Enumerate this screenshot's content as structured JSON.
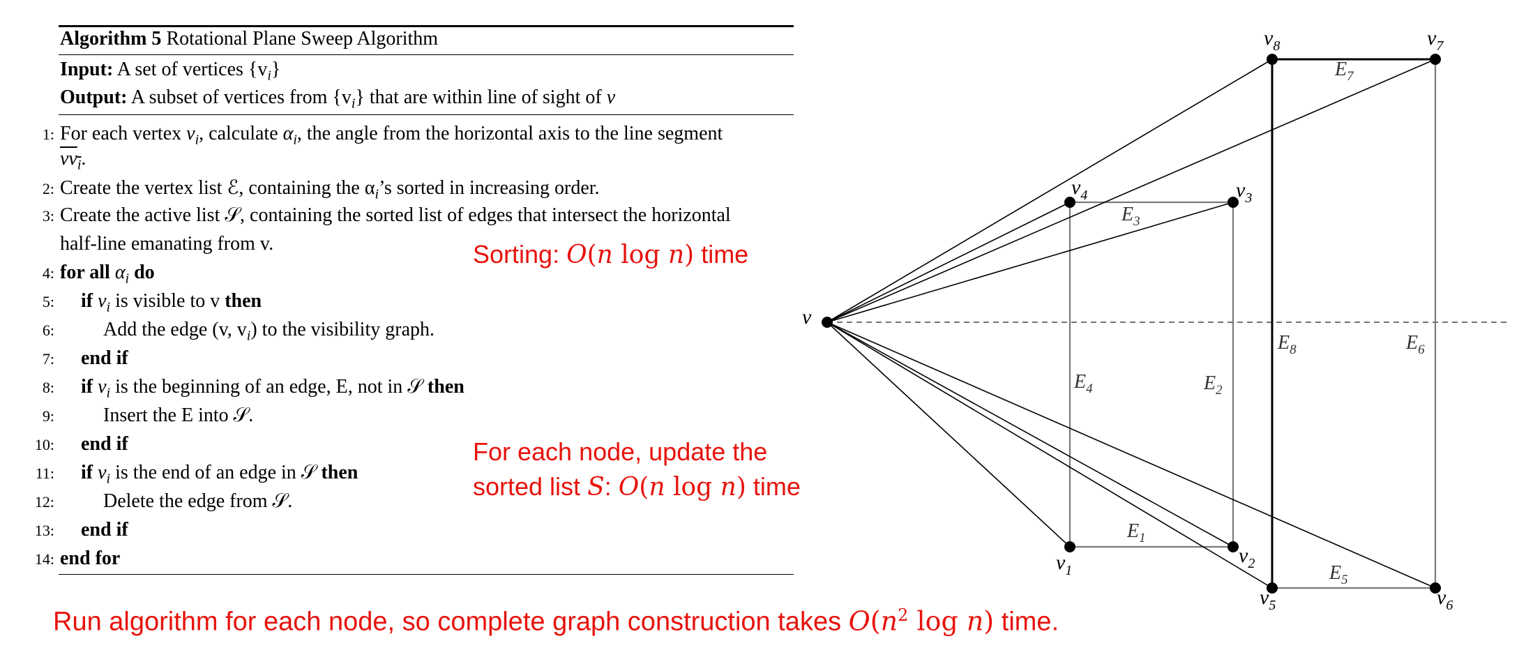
{
  "algorithm": {
    "title_bold": "Algorithm 5",
    "title_rest": " Rotational Plane Sweep Algorithm",
    "input_label": "Input:",
    "input_text": " A set of vertices {v",
    "output_label": "Output:",
    "output_text": " A subset of vertices from {v",
    "output_tail": "} that are within line of sight of ",
    "lines": [
      {
        "num": "1:",
        "a": "For each vertex ",
        "b": "v",
        "c": ", calculate ",
        "d": "α",
        "e": ", the angle from the horizontal axis to the line segment"
      },
      {
        "num": "",
        "a": "vv"
      },
      {
        "num": "2:",
        "a": "Create the vertex list ℰ, containing the α",
        "b": "’s sorted in increasing order."
      },
      {
        "num": "3:",
        "a": "Create the active list 𝒮, containing the sorted list of edges that intersect the horizontal"
      },
      {
        "num": "",
        "a": "half-line emanating from v."
      },
      {
        "num": "4:",
        "kw": "for all",
        "a": " α",
        "b": " do"
      },
      {
        "num": "5:",
        "kw": "if",
        "a": " v",
        "b": " is visible to v ",
        "c": "then"
      },
      {
        "num": "6:",
        "a": "Add the edge (v, v",
        "b": ") to the visibility graph."
      },
      {
        "num": "7:",
        "kw": "end if"
      },
      {
        "num": "8:",
        "kw": "if",
        "a": " v",
        "b": " is the beginning of an edge, E, not in 𝒮 ",
        "c": "then"
      },
      {
        "num": "9:",
        "a": "Insert the E into 𝒮."
      },
      {
        "num": "10:",
        "kw": "end if"
      },
      {
        "num": "11:",
        "kw": "if",
        "a": " v",
        "b": " is the end of an edge in 𝒮 ",
        "c": "then"
      },
      {
        "num": "12:",
        "a": "Delete the edge from 𝒮."
      },
      {
        "num": "13:",
        "kw": "end if"
      },
      {
        "num": "14:",
        "kw": "end for"
      }
    ]
  },
  "annotations": {
    "sorting": {
      "a": "Sorting: ",
      "b": "O",
      "c": "(",
      "d": "n",
      "e": " log ",
      "f": "n",
      "g": ")",
      "h": " time"
    },
    "update_line1": "For each node, update the",
    "update_line2": {
      "a": "sorted list ",
      "b": "S",
      "c": ": ",
      "d": "O",
      "e": "(",
      "f": "n",
      "g": " log ",
      "h": "n",
      "i": ")",
      "j": " time"
    },
    "bottom": {
      "a": "Run algorithm for each node, so complete graph construction takes ",
      "b": "O",
      "c": "(",
      "d": "n",
      "e": "2",
      "f": " log ",
      "g": "n",
      "h": ")",
      "i": " time."
    }
  },
  "diagram": {
    "vertices": [
      {
        "id": "v",
        "label": "v"
      },
      {
        "id": "v1",
        "label": "v",
        "sub": "1"
      },
      {
        "id": "v2",
        "label": "v",
        "sub": "2"
      },
      {
        "id": "v3",
        "label": "v",
        "sub": "3"
      },
      {
        "id": "v4",
        "label": "v",
        "sub": "4"
      },
      {
        "id": "v5",
        "label": "v",
        "sub": "5"
      },
      {
        "id": "v6",
        "label": "v",
        "sub": "6"
      },
      {
        "id": "v7",
        "label": "v",
        "sub": "7"
      },
      {
        "id": "v8",
        "label": "v",
        "sub": "8"
      }
    ],
    "edges": [
      {
        "id": "E1",
        "label": "E",
        "sub": "1"
      },
      {
        "id": "E2",
        "label": "E",
        "sub": "2"
      },
      {
        "id": "E3",
        "label": "E",
        "sub": "3"
      },
      {
        "id": "E4",
        "label": "E",
        "sub": "4"
      },
      {
        "id": "E5",
        "label": "E",
        "sub": "5"
      },
      {
        "id": "E6",
        "label": "E",
        "sub": "6"
      },
      {
        "id": "E7",
        "label": "E",
        "sub": "7"
      },
      {
        "id": "E8",
        "label": "E",
        "sub": "8"
      }
    ],
    "colors": {
      "text_red": "#e8120c",
      "edge_gray": "#7a7a7a",
      "sight_black": "#000000"
    }
  }
}
